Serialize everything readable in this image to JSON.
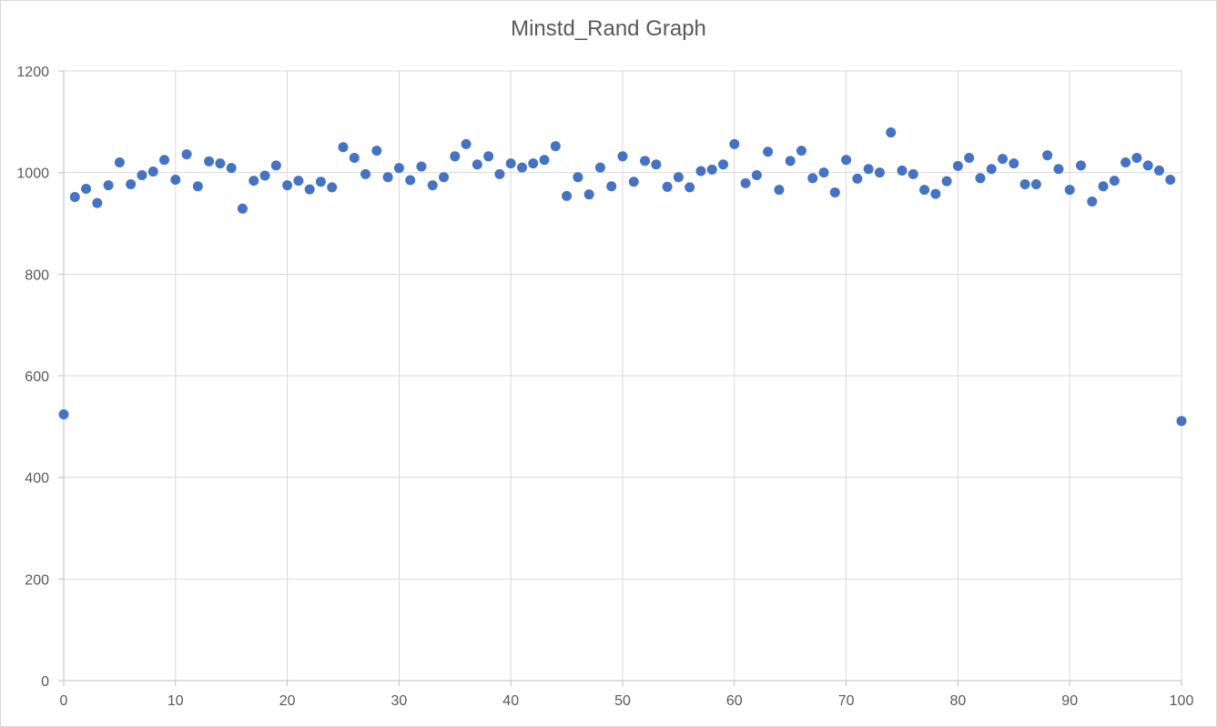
{
  "chart_data": {
    "type": "scatter",
    "title": "Minstd_Rand Graph",
    "xlabel": "",
    "ylabel": "",
    "xlim": [
      0,
      100
    ],
    "ylim": [
      0,
      1200
    ],
    "x_ticks": [
      0,
      10,
      20,
      30,
      40,
      50,
      60,
      70,
      80,
      90,
      100
    ],
    "y_ticks": [
      0,
      200,
      400,
      600,
      800,
      1000,
      1200
    ],
    "grid": "on",
    "marker_color": "#4472c4",
    "series": [
      {
        "x": [
          0,
          1,
          2,
          3,
          4,
          5,
          6,
          7,
          8,
          9,
          10,
          11,
          12,
          13,
          14,
          15,
          16,
          17,
          18,
          19,
          20,
          21,
          22,
          23,
          24,
          25,
          26,
          27,
          28,
          29,
          30,
          31,
          32,
          33,
          34,
          35,
          36,
          37,
          38,
          39,
          40,
          41,
          42,
          43,
          44,
          45,
          46,
          47,
          48,
          49,
          50,
          51,
          52,
          53,
          54,
          55,
          56,
          57,
          58,
          59,
          60,
          61,
          62,
          63,
          64,
          65,
          66,
          67,
          68,
          69,
          70,
          71,
          72,
          73,
          74,
          75,
          76,
          77,
          78,
          79,
          80,
          81,
          82,
          83,
          84,
          85,
          86,
          87,
          88,
          89,
          90,
          91,
          92,
          93,
          94,
          95,
          96,
          97,
          98,
          99,
          100
        ],
        "y": [
          524,
          952,
          968,
          940,
          975,
          1020,
          977,
          995,
          1002,
          1025,
          986,
          1036,
          973,
          1022,
          1018,
          1009,
          929,
          984,
          994,
          1014,
          975,
          984,
          967,
          982,
          971,
          1050,
          1029,
          997,
          1043,
          991,
          1009,
          985,
          1012,
          975,
          991,
          1032,
          1056,
          1016,
          1032,
          997,
          1018,
          1010,
          1018,
          1025,
          1052,
          954,
          991,
          957,
          1010,
          973,
          1032,
          982,
          1023,
          1016,
          972,
          991,
          971,
          1003,
          1006,
          1016,
          1056,
          979,
          995,
          1041,
          966,
          1023,
          1043,
          989,
          1000,
          961,
          1025,
          988,
          1007,
          1000,
          1079,
          1004,
          997,
          966,
          958,
          983,
          1013,
          1029,
          989,
          1007,
          1027,
          1018,
          977,
          977,
          1034,
          1007,
          966,
          1014,
          943,
          973,
          984,
          1020,
          1029,
          1014,
          1004,
          986,
          511
        ]
      }
    ]
  }
}
